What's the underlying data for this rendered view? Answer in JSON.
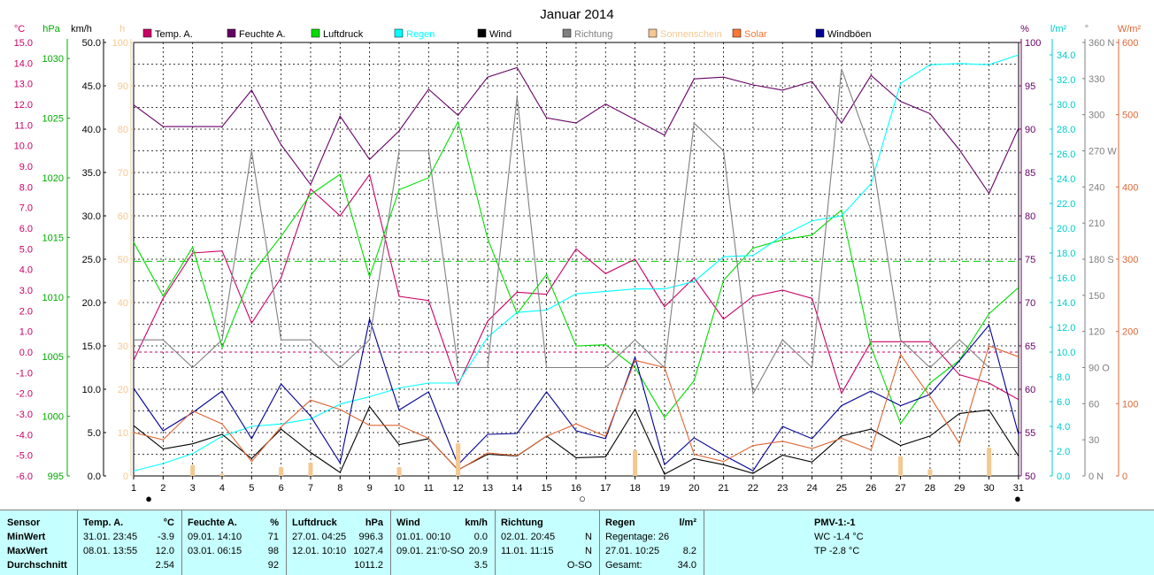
{
  "chart_data": {
    "type": "line",
    "title": "Januar 2014",
    "x": [
      1,
      2,
      3,
      4,
      5,
      6,
      7,
      8,
      9,
      10,
      11,
      12,
      13,
      14,
      15,
      16,
      17,
      18,
      19,
      20,
      21,
      22,
      23,
      24,
      25,
      26,
      27,
      28,
      29,
      30,
      31
    ],
    "axes": {
      "temp": {
        "unit": "°C",
        "color": "#cc0066",
        "ticks": [
          "15.0",
          "14.0",
          "13.0",
          "12.0",
          "11.0",
          "10.0",
          "9.0",
          "8.0",
          "7.0",
          "6.0",
          "5.0",
          "4.0",
          "3.0",
          "2.0",
          "1.0",
          "0.0",
          "-1.0",
          "-2.0",
          "-3.0",
          "-4.0",
          "-5.0",
          "-6.0"
        ],
        "min": -6,
        "max": 15
      },
      "press": {
        "unit": "hPa",
        "color": "#00aa00",
        "ticks": [
          "1030",
          "1025",
          "1020",
          "1015",
          "1010",
          "1005",
          "1000",
          "995"
        ],
        "min": 995,
        "max": 1031.35
      },
      "wind": {
        "unit": "km/h",
        "color": "#000000",
        "ticks": [
          "50.0",
          "45.0",
          "40.0",
          "35.0",
          "30.0",
          "25.0",
          "20.0",
          "15.0",
          "10.0",
          "5.0",
          "0.0"
        ],
        "min": 0,
        "max": 50
      },
      "sun": {
        "unit": "h",
        "color": "#f5c890",
        "ticks": [
          "100",
          "90",
          "80",
          "70",
          "60",
          "50",
          "40",
          "30",
          "20",
          "10",
          "0"
        ],
        "min": 0,
        "max": 100
      },
      "hum": {
        "unit": "%",
        "color": "#660066",
        "ticks": [
          "100",
          "95",
          "90",
          "85",
          "80",
          "75",
          "70",
          "65",
          "60",
          "55",
          "50"
        ],
        "min": 50,
        "max": 100
      },
      "rain": {
        "unit": "l/m²",
        "color": "#00cccc",
        "ticks": [
          "34.0",
          "32.0",
          "30.0",
          "28.0",
          "26.0",
          "24.0",
          "22.0",
          "20.0",
          "18.0",
          "16.0",
          "14.0",
          "12.0",
          "10.0",
          "8.0",
          "6.0",
          "4.0",
          "2.0",
          "0.0"
        ],
        "min": 0,
        "max": 35
      },
      "dir": {
        "unit": "°",
        "color": "#808080",
        "ticks": [
          "360 N",
          "330",
          "300",
          "270 W",
          "240",
          "210",
          "180 S",
          "150",
          "120",
          "90 O",
          "60",
          "30",
          "0 N"
        ],
        "min": 0,
        "max": 360
      },
      "solar": {
        "unit": "W/m²",
        "color": "#dd6633",
        "ticks": [
          "600",
          "500",
          "400",
          "300",
          "200",
          "100",
          "0"
        ],
        "min": 0,
        "max": 600
      }
    },
    "legend": [
      {
        "name": "Temp. A.",
        "color": "#cc0066"
      },
      {
        "name": "Feuchte A.",
        "color": "#660066"
      },
      {
        "name": "Luftdruck",
        "color": "#00dd00"
      },
      {
        "name": "Regen",
        "color": "#00ffff"
      },
      {
        "name": "Wind",
        "color": "#000000"
      },
      {
        "name": "Richtung",
        "color": "#808080"
      },
      {
        "name": "Sonnenschein",
        "color": "#f5c890"
      },
      {
        "name": "Solar",
        "color": "#ff7733"
      },
      {
        "name": "Windböen",
        "color": "#000099"
      }
    ],
    "series": [
      {
        "name": "Temp. A.",
        "axis": "temp",
        "color": "#cc0066",
        "values": [
          -0.4,
          2.6,
          4.8,
          4.9,
          1.4,
          3.6,
          7.9,
          6.6,
          8.6,
          2.7,
          2.5,
          -1.6,
          1.5,
          2.9,
          2.8,
          5.0,
          3.8,
          4.5,
          2.2,
          3.6,
          1.6,
          2.7,
          3.0,
          2.6,
          -2.0,
          0.5,
          0.5,
          0.5,
          -1.1,
          -1.5,
          -2.3
        ]
      },
      {
        "name": "Feuchte A.",
        "axis": "hum",
        "color": "#660066",
        "values": [
          92.8,
          90.3,
          90.3,
          90.3,
          94.5,
          88.2,
          83.6,
          91.5,
          86.5,
          89.8,
          94.6,
          91.6,
          96.0,
          97.1,
          91.3,
          90.7,
          92.9,
          91.1,
          89.3,
          95.8,
          96.0,
          95.1,
          94.5,
          95.5,
          90.7,
          96.2,
          93.2,
          91.8,
          87.6,
          82.6,
          90.1
        ]
      },
      {
        "name": "Luftdruck",
        "axis": "press",
        "color": "#00dd00",
        "values": [
          1014.6,
          1010.1,
          1014.2,
          1005.8,
          1011.9,
          1015.1,
          1018.6,
          1020.3,
          1011.7,
          1019.0,
          1020.0,
          1024.7,
          1014.9,
          1008.6,
          1011.9,
          1005.9,
          1006.0,
          1004.1,
          999.9,
          1003.0,
          1011.4,
          1014.1,
          1014.8,
          1015.2,
          1017.3,
          1005.8,
          999.4,
          1002.8,
          1004.7,
          1008.6,
          1010.8
        ]
      },
      {
        "name": "Regen",
        "axis": "rain",
        "color": "#00ffff",
        "values": [
          0.4,
          1.0,
          1.8,
          3.2,
          4.0,
          4.2,
          4.6,
          5.8,
          6.4,
          7.1,
          7.5,
          7.5,
          11.2,
          13.2,
          13.4,
          14.7,
          14.9,
          15.1,
          15.1,
          15.7,
          17.7,
          17.8,
          19.4,
          20.6,
          21.0,
          23.6,
          31.7,
          33.2,
          33.3,
          33.2,
          34.0
        ]
      },
      {
        "name": "Wind",
        "axis": "wind",
        "color": "#000000",
        "values": [
          5.8,
          3.1,
          3.7,
          4.8,
          2.0,
          5.4,
          2.7,
          0.4,
          8.0,
          3.6,
          4.3,
          0.7,
          2.5,
          2.3,
          4.6,
          2.1,
          2.2,
          7.7,
          0.2,
          2.0,
          1.3,
          0.3,
          2.4,
          1.6,
          4.6,
          5.4,
          3.5,
          4.6,
          7.2,
          7.6,
          2.3
        ]
      },
      {
        "name": "Windböen",
        "axis": "wind",
        "color": "#000099",
        "values": [
          10.1,
          5.2,
          7.3,
          9.8,
          4.3,
          10.6,
          6.9,
          1.5,
          18.1,
          7.6,
          9.7,
          1.3,
          4.8,
          4.9,
          9.7,
          5.2,
          4.3,
          13.7,
          1.3,
          4.4,
          2.4,
          0.6,
          5.7,
          4.3,
          8.1,
          9.8,
          8.1,
          9.4,
          13.3,
          17.4,
          4.8
        ]
      },
      {
        "name": "Richtung",
        "axis": "dir",
        "color": "#808080",
        "values": [
          113,
          113,
          90,
          113,
          270,
          113,
          113,
          90,
          113,
          270,
          270,
          90,
          90,
          315,
          90,
          90,
          90,
          113,
          90,
          293,
          270,
          68,
          113,
          90,
          338,
          270,
          113,
          90,
          113,
          90,
          90
        ]
      },
      {
        "name": "Solar",
        "axis": "solar",
        "color": "#dd6633",
        "values": [
          60,
          50,
          90,
          72,
          20,
          68,
          105,
          92,
          70,
          70,
          52,
          8,
          32,
          28,
          55,
          72,
          55,
          160,
          150,
          30,
          20,
          42,
          48,
          38,
          52,
          36,
          168,
          110,
          45,
          180,
          165
        ]
      },
      {
        "name": "Sonnenschein",
        "axis": "sun",
        "type": "bar",
        "color": "#f5c890",
        "values": [
          0,
          0,
          2.5,
          0.5,
          0,
          2,
          3,
          0,
          0,
          2,
          0,
          7.5,
          0,
          0,
          0,
          0,
          0,
          6,
          0,
          0,
          0,
          0,
          0,
          0,
          0,
          0,
          4.5,
          1.5,
          0,
          6.5,
          0
        ]
      }
    ],
    "ref_lines": [
      {
        "axis": "temp",
        "value": 0,
        "color": "#cc0066"
      },
      {
        "axis": "press",
        "value": 1013,
        "color": "#00cc00"
      }
    ],
    "moon_markers": [
      {
        "day": 1,
        "symbol": "●"
      },
      {
        "day": 16,
        "symbol": "○"
      },
      {
        "day": 31,
        "symbol": "●"
      }
    ],
    "grid": true
  },
  "header_units": {
    "temp": "°C",
    "press": "hPa",
    "wind": "km/h",
    "sun": "h",
    "hum": "%",
    "rain": "l/m²",
    "dir": "°",
    "solar": "W/m²"
  },
  "summary": {
    "row_labels": [
      "Sensor",
      "MinWert",
      "MaxWert",
      "Durchschnitt"
    ],
    "temp": {
      "title": "Temp. A.",
      "unit": "°C",
      "min_time": "31.01.  23:45",
      "min_val": "-3.9",
      "max_time": "08.01.  13:55",
      "max_val": "12.0",
      "avg": "2.54"
    },
    "hum": {
      "title": "Feuchte A.",
      "unit": "%",
      "min_time": "09.01.  14:10",
      "min_val": "71",
      "max_time": "03.01.  06:15",
      "max_val": "98",
      "avg": "92"
    },
    "press": {
      "title": "Luftdruck",
      "unit": "hPa",
      "min_time": "27.01.  04:25",
      "min_val": "996.3",
      "max_time": "12.01.  10:10",
      "max_val": "1027.4",
      "avg": "1011.2"
    },
    "wind": {
      "title": "Wind",
      "unit": "km/h",
      "min_time": "01.01.  00:10",
      "min_val": "0.0",
      "max_time": "09.01.  21:'0-SO",
      "max_val": "20.9",
      "avg": "3.5"
    },
    "dir": {
      "title": "Richtung",
      "unit": "",
      "min_time": "02.01.  20:45",
      "min_val": "N",
      "max_time": "11.01.  11:15",
      "max_val": "N",
      "avg": "O-SO"
    },
    "rain": {
      "title": "Regen",
      "unit": "l/m²",
      "days_label": "Regentage: 26",
      "max_time": "27.01.  10:25",
      "max_val": "8.2",
      "total_label": "Gesamt:",
      "total": "34.0"
    },
    "pmv": {
      "title": "PMV-1:-1",
      "wc": "WC -1.4 °C",
      "tp": "TP -2.8 °C"
    }
  }
}
